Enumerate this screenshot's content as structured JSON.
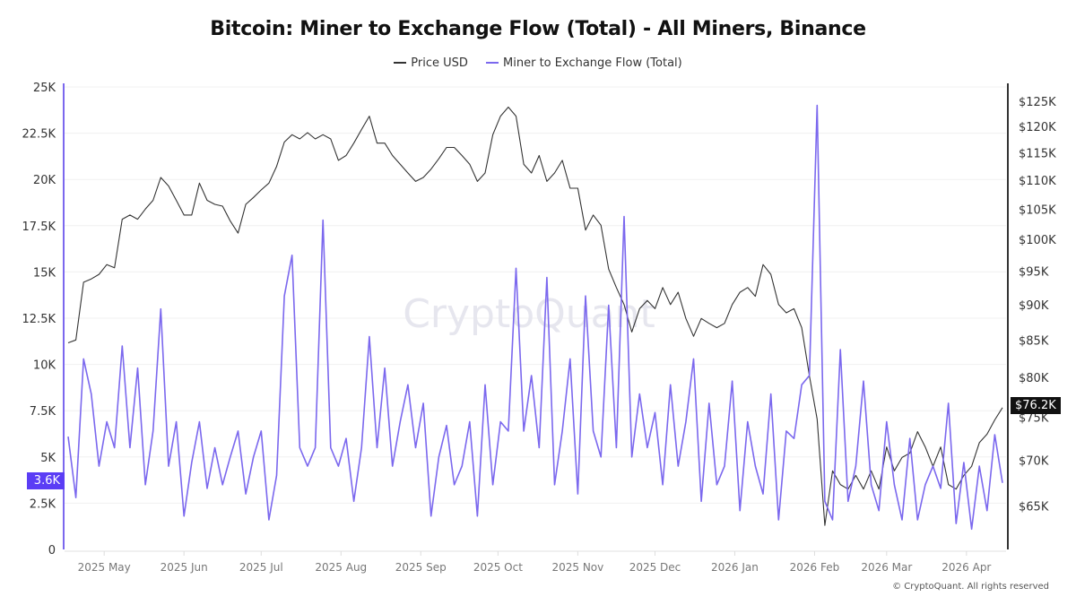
{
  "chart_data": {
    "type": "line",
    "title": "Bitcoin: Miner to Exchange Flow (Total) - All Miners, Binance",
    "legend_position": "top",
    "grid": true,
    "watermark": "CryptoQuant",
    "x": [
      "2025-04-17",
      "2025-04-20",
      "2025-04-23",
      "2025-04-26",
      "2025-04-29",
      "2025-05-02",
      "2025-05-05",
      "2025-05-08",
      "2025-05-11",
      "2025-05-14",
      "2025-05-17",
      "2025-05-20",
      "2025-05-23",
      "2025-05-26",
      "2025-05-29",
      "2025-06-01",
      "2025-06-04",
      "2025-06-07",
      "2025-06-10",
      "2025-06-13",
      "2025-06-16",
      "2025-06-19",
      "2025-06-22",
      "2025-06-25",
      "2025-06-28",
      "2025-07-01",
      "2025-07-04",
      "2025-07-07",
      "2025-07-10",
      "2025-07-13",
      "2025-07-16",
      "2025-07-19",
      "2025-07-22",
      "2025-07-25",
      "2025-07-28",
      "2025-07-31",
      "2025-08-03",
      "2025-08-06",
      "2025-08-09",
      "2025-08-12",
      "2025-08-15",
      "2025-08-18",
      "2025-08-21",
      "2025-08-24",
      "2025-08-27",
      "2025-08-30",
      "2025-09-02",
      "2025-09-05",
      "2025-09-08",
      "2025-09-11",
      "2025-09-14",
      "2025-09-17",
      "2025-09-20",
      "2025-09-23",
      "2025-09-26",
      "2025-09-29",
      "2025-10-02",
      "2025-10-05",
      "2025-10-08",
      "2025-10-11",
      "2025-10-14",
      "2025-10-17",
      "2025-10-20",
      "2025-10-23",
      "2025-10-26",
      "2025-10-29",
      "2025-11-01",
      "2025-11-04",
      "2025-11-07",
      "2025-11-10",
      "2025-11-13",
      "2025-11-16",
      "2025-11-19",
      "2025-11-22",
      "2025-11-25",
      "2025-11-28",
      "2025-12-01",
      "2025-12-04",
      "2025-12-07",
      "2025-12-10",
      "2025-12-13",
      "2025-12-16",
      "2025-12-19",
      "2025-12-22",
      "2025-12-25",
      "2025-12-28",
      "2025-12-31",
      "2026-01-03",
      "2026-01-06",
      "2026-01-09",
      "2026-01-12",
      "2026-01-15",
      "2026-01-18",
      "2026-01-21",
      "2026-01-24",
      "2026-01-27",
      "2026-01-30",
      "2026-02-02",
      "2026-02-05",
      "2026-02-08",
      "2026-02-11",
      "2026-02-14",
      "2026-02-17",
      "2026-02-20",
      "2026-02-23",
      "2026-02-26",
      "2026-03-01",
      "2026-03-04",
      "2026-03-07",
      "2026-03-10",
      "2026-03-13",
      "2026-03-16",
      "2026-03-19",
      "2026-03-22",
      "2026-03-25",
      "2026-03-28",
      "2026-03-31",
      "2026-04-03",
      "2026-04-06",
      "2026-04-09",
      "2026-04-12",
      "2026-04-15"
    ],
    "xlim": [
      "2025-04-17",
      "2026-04-15"
    ],
    "x_ticks": [
      {
        "date": "2025-05-01",
        "label": "2025 May"
      },
      {
        "date": "2025-06-01",
        "label": "2025 Jun"
      },
      {
        "date": "2025-07-01",
        "label": "2025 Jul"
      },
      {
        "date": "2025-08-01",
        "label": "2025 Aug"
      },
      {
        "date": "2025-09-01",
        "label": "2025 Sep"
      },
      {
        "date": "2025-10-01",
        "label": "2025 Oct"
      },
      {
        "date": "2025-11-01",
        "label": "2025 Nov"
      },
      {
        "date": "2025-12-01",
        "label": "2025 Dec"
      },
      {
        "date": "2026-01-01",
        "label": "2026 Jan"
      },
      {
        "date": "2026-02-01",
        "label": "2026 Feb"
      },
      {
        "date": "2026-03-01",
        "label": "2026 Mar"
      },
      {
        "date": "2026-04-01",
        "label": "2026 Apr"
      }
    ],
    "y_left": {
      "ylim": [
        0,
        25
      ],
      "scale": "linear",
      "unit": "K",
      "ticks": [
        {
          "v": 0,
          "label": "0"
        },
        {
          "v": 2.5,
          "label": "2.5K"
        },
        {
          "v": 5,
          "label": "5K"
        },
        {
          "v": 7.5,
          "label": "7.5K"
        },
        {
          "v": 10,
          "label": "10K"
        },
        {
          "v": 12.5,
          "label": "12.5K"
        },
        {
          "v": 15,
          "label": "15K"
        },
        {
          "v": 17.5,
          "label": "17.5K"
        },
        {
          "v": 20,
          "label": "20K"
        },
        {
          "v": 22.5,
          "label": "22.5K"
        },
        {
          "v": 25,
          "label": "25K"
        }
      ]
    },
    "y_right": {
      "ylim": [
        60.6,
        127.9
      ],
      "scale": "log",
      "unit": "USD K",
      "ticks": [
        {
          "v": 65,
          "label": "$65K"
        },
        {
          "v": 70,
          "label": "$70K"
        },
        {
          "v": 75,
          "label": "$75K"
        },
        {
          "v": 80,
          "label": "$80K"
        },
        {
          "v": 85,
          "label": "$85K"
        },
        {
          "v": 90,
          "label": "$90K"
        },
        {
          "v": 95,
          "label": "$95K"
        },
        {
          "v": 100,
          "label": "$100K"
        },
        {
          "v": 105,
          "label": "$105K"
        },
        {
          "v": 110,
          "label": "$110K"
        },
        {
          "v": 115,
          "label": "$115K"
        },
        {
          "v": 120,
          "label": "$120K"
        },
        {
          "v": 125,
          "label": "$125K"
        }
      ]
    },
    "series": [
      {
        "name": "Price USD",
        "axis": "right",
        "color": "#333333",
        "values": [
          84.6,
          85,
          93.3,
          93.8,
          94.5,
          96,
          95.5,
          103.3,
          104,
          103.3,
          105,
          106.5,
          110.5,
          109,
          106.5,
          104,
          104,
          109.5,
          106.5,
          105.8,
          105.5,
          103,
          101,
          105.8,
          107,
          108.3,
          109.5,
          112.5,
          117,
          118.4,
          117.6,
          118.8,
          117.6,
          118.4,
          117.6,
          113.6,
          114.5,
          116.8,
          119.4,
          122,
          116.8,
          116.8,
          114.5,
          112.9,
          111.3,
          109.8,
          110.5,
          112,
          113.9,
          116,
          116,
          114.5,
          112.9,
          109.8,
          111.3,
          118.4,
          122,
          123.8,
          122,
          112.9,
          111.3,
          114.5,
          109.8,
          111.3,
          113.6,
          108.6,
          108.6,
          101.5,
          104,
          102.3,
          95.3,
          92.5,
          90,
          86.1,
          89.4,
          90.6,
          89.4,
          92.5,
          90,
          91.8,
          88,
          85.5,
          88,
          87.3,
          86.7,
          87.3,
          90,
          91.8,
          92.5,
          91.2,
          96,
          94.5,
          90,
          88.8,
          89.4,
          86.7,
          80.2,
          74.8,
          63,
          68.8,
          67.3,
          66.8,
          68.3,
          66.8,
          68.8,
          66.8,
          71.5,
          68.8,
          70.3,
          70.8,
          73.3,
          71.5,
          69.3,
          71.5,
          67.3,
          66.8,
          68.3,
          69.3,
          72,
          73,
          74.7,
          76.2
        ]
      },
      {
        "name": "Miner to Exchange Flow (Total)",
        "axis": "left",
        "color": "#7b68ee",
        "values": [
          6.1,
          2.8,
          10.3,
          8.4,
          4.5,
          6.9,
          5.5,
          11,
          5.5,
          9.8,
          3.5,
          6.4,
          13,
          4.5,
          6.9,
          1.8,
          4.7,
          6.9,
          3.3,
          5.5,
          3.5,
          5,
          6.4,
          3,
          5,
          6.4,
          1.6,
          4,
          13.7,
          15.9,
          5.5,
          4.5,
          5.5,
          17.8,
          5.5,
          4.5,
          6,
          2.6,
          5.5,
          11.5,
          5.5,
          9.8,
          4.5,
          6.9,
          8.9,
          5.5,
          7.9,
          1.8,
          5,
          6.7,
          3.5,
          4.5,
          6.9,
          1.8,
          8.9,
          3.5,
          6.9,
          6.4,
          15.2,
          6.4,
          9.4,
          5.5,
          14.7,
          3.5,
          6.4,
          10.3,
          3,
          13.7,
          6.4,
          5,
          13.2,
          5.5,
          18,
          5,
          8.4,
          5.5,
          7.4,
          3.5,
          8.9,
          4.5,
          6.9,
          10.3,
          2.6,
          7.9,
          3.5,
          4.5,
          9.1,
          2.1,
          6.9,
          4.5,
          3,
          8.4,
          1.6,
          6.4,
          6,
          8.9,
          9.4,
          24,
          2.6,
          1.6,
          10.8,
          2.6,
          4.5,
          9.1,
          3.5,
          2.1,
          6.9,
          3.5,
          1.6,
          6,
          1.6,
          3.5,
          4.5,
          3.3,
          7.9,
          1.4,
          4.7,
          1.1,
          4.5,
          2.1,
          6.2,
          3.6
        ]
      }
    ],
    "last_value_labels": {
      "left": "3.6K",
      "right": "$76.2K"
    },
    "copyright": "© CryptoQuant. All rights reserved"
  }
}
